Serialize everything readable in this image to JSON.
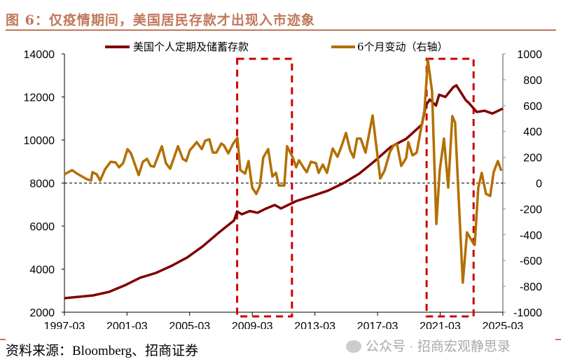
{
  "title": "图 6：仅疫情期间，美国居民存款才出现入市迹象",
  "source": "资料来源：Bloomberg、招商证券",
  "watermark": "公众号 · 招商宏观静思录",
  "colors": {
    "deposits": "#800000",
    "change": "#b36f00",
    "highlight": "#cc0000",
    "title": "#c0785a"
  },
  "chart_data": {
    "type": "line",
    "title": "仅疫情期间，美国居民存款才出现入市迹象",
    "x_ticks": [
      "1997-03",
      "2001-03",
      "2005-03",
      "2009-03",
      "2013-03",
      "2017-03",
      "2021-03",
      "2025-03"
    ],
    "x_range": [
      1997.17,
      2025.17
    ],
    "y_left": {
      "range": [
        2000,
        14000
      ],
      "ticks": [
        "2000",
        "4000",
        "6000",
        "8000",
        "10000",
        "12000",
        "14000"
      ]
    },
    "y_right": {
      "range": [
        -1000,
        1000
      ],
      "ticks": [
        "-1000",
        "-800",
        "-600",
        "-400",
        "-200",
        "0",
        "200",
        "400",
        "600",
        "800",
        "1000"
      ]
    },
    "zero_line_right": 0,
    "highlight_periods": [
      [
        2008.2,
        2011.7
      ],
      [
        2020.3,
        2023.3
      ]
    ],
    "series": [
      {
        "name": "美国个人定期及储蓄存款",
        "axis": "left",
        "points": [
          [
            1997.17,
            2650
          ],
          [
            1999.0,
            2780
          ],
          [
            2000.0,
            2940
          ],
          [
            2001.0,
            3240
          ],
          [
            2002.0,
            3600
          ],
          [
            2003.0,
            3820
          ],
          [
            2004.0,
            4150
          ],
          [
            2005.0,
            4540
          ],
          [
            2006.0,
            5060
          ],
          [
            2007.0,
            5680
          ],
          [
            2008.0,
            6260
          ],
          [
            2008.2,
            6680
          ],
          [
            2008.5,
            6550
          ],
          [
            2009.0,
            6700
          ],
          [
            2009.5,
            6620
          ],
          [
            2010.0,
            6800
          ],
          [
            2010.6,
            6980
          ],
          [
            2011.0,
            6820
          ],
          [
            2011.5,
            7000
          ],
          [
            2012.0,
            7170
          ],
          [
            2013.0,
            7400
          ],
          [
            2014.0,
            7650
          ],
          [
            2015.0,
            8000
          ],
          [
            2016.0,
            8440
          ],
          [
            2017.0,
            9030
          ],
          [
            2018.0,
            9670
          ],
          [
            2019.0,
            10060
          ],
          [
            2020.0,
            10720
          ],
          [
            2020.25,
            11600
          ],
          [
            2020.5,
            11880
          ],
          [
            2020.9,
            11600
          ],
          [
            2021.1,
            12100
          ],
          [
            2021.5,
            12000
          ],
          [
            2022.0,
            12450
          ],
          [
            2022.2,
            12540
          ],
          [
            2022.8,
            11850
          ],
          [
            2023.0,
            11720
          ],
          [
            2023.5,
            11300
          ],
          [
            2024.0,
            11360
          ],
          [
            2024.5,
            11230
          ],
          [
            2025.17,
            11460
          ]
        ]
      },
      {
        "name": "6个月变动（右轴）",
        "axis": "right",
        "points": [
          [
            1997.17,
            68
          ],
          [
            1997.66,
            100
          ],
          [
            1997.97,
            73
          ],
          [
            1998.6,
            30
          ],
          [
            1998.87,
            19
          ],
          [
            1998.96,
            84
          ],
          [
            1999.23,
            68
          ],
          [
            1999.45,
            19
          ],
          [
            1999.76,
            106
          ],
          [
            2000.12,
            165
          ],
          [
            2000.43,
            160
          ],
          [
            2000.66,
            122
          ],
          [
            2000.92,
            154
          ],
          [
            2001.2,
            263
          ],
          [
            2001.42,
            230
          ],
          [
            2001.91,
            62
          ],
          [
            2002.18,
            165
          ],
          [
            2002.45,
            187
          ],
          [
            2002.67,
            133
          ],
          [
            2002.89,
            127
          ],
          [
            2003.39,
            285
          ],
          [
            2003.65,
            154
          ],
          [
            2003.92,
            111
          ],
          [
            2004.42,
            285
          ],
          [
            2004.73,
            187
          ],
          [
            2004.95,
            170
          ],
          [
            2005.17,
            252
          ],
          [
            2005.62,
            317
          ],
          [
            2005.94,
            263
          ],
          [
            2006.16,
            328
          ],
          [
            2006.43,
            339
          ],
          [
            2006.65,
            236
          ],
          [
            2006.87,
            236
          ],
          [
            2007.19,
            306
          ],
          [
            2007.37,
            290
          ],
          [
            2007.63,
            230
          ],
          [
            2007.95,
            306
          ],
          [
            2008.22,
            350
          ],
          [
            2008.4,
            100
          ],
          [
            2008.71,
            73
          ],
          [
            2008.93,
            170
          ],
          [
            2009.16,
            -35
          ],
          [
            2009.42,
            -84
          ],
          [
            2009.65,
            -24
          ],
          [
            2009.87,
            198
          ],
          [
            2010.18,
            263
          ],
          [
            2010.45,
            51
          ],
          [
            2010.68,
            79
          ],
          [
            2010.86,
            -19
          ],
          [
            2011.21,
            -19
          ],
          [
            2011.39,
            285
          ],
          [
            2011.75,
            198
          ],
          [
            2011.97,
            122
          ],
          [
            2012.15,
            176
          ],
          [
            2012.46,
            116
          ],
          [
            2012.64,
            84
          ],
          [
            2012.91,
            165
          ],
          [
            2013.23,
            154
          ],
          [
            2013.4,
            79
          ],
          [
            2013.67,
            143
          ],
          [
            2013.94,
            79
          ],
          [
            2014.3,
            268
          ],
          [
            2014.61,
            203
          ],
          [
            2014.88,
            290
          ],
          [
            2015.15,
            388
          ],
          [
            2015.42,
            252
          ],
          [
            2015.64,
            198
          ],
          [
            2015.86,
            344
          ],
          [
            2016.09,
            344
          ],
          [
            2016.4,
            236
          ],
          [
            2016.85,
            523
          ],
          [
            2017.34,
            35
          ],
          [
            2017.61,
            95
          ],
          [
            2017.96,
            241
          ],
          [
            2018.19,
            290
          ],
          [
            2018.41,
            301
          ],
          [
            2018.68,
            133
          ],
          [
            2018.99,
            192
          ],
          [
            2019.13,
            317
          ],
          [
            2019.4,
            214
          ],
          [
            2019.67,
            236
          ],
          [
            2019.89,
            388
          ],
          [
            2020.16,
            561
          ],
          [
            2020.38,
            954
          ],
          [
            2020.65,
            710
          ],
          [
            2020.92,
            -317
          ],
          [
            2021.14,
            100
          ],
          [
            2021.41,
            344
          ],
          [
            2021.68,
            -35
          ],
          [
            2021.94,
            518
          ],
          [
            2022.12,
            469
          ],
          [
            2022.35,
            -127
          ],
          [
            2022.61,
            -772
          ],
          [
            2022.88,
            -382
          ],
          [
            2023.24,
            -458
          ],
          [
            2023.37,
            -479
          ],
          [
            2023.6,
            -35
          ],
          [
            2023.82,
            79
          ],
          [
            2024.09,
            -84
          ],
          [
            2024.36,
            -100
          ],
          [
            2024.58,
            84
          ],
          [
            2024.85,
            170
          ],
          [
            2025.07,
            95
          ]
        ]
      }
    ]
  }
}
